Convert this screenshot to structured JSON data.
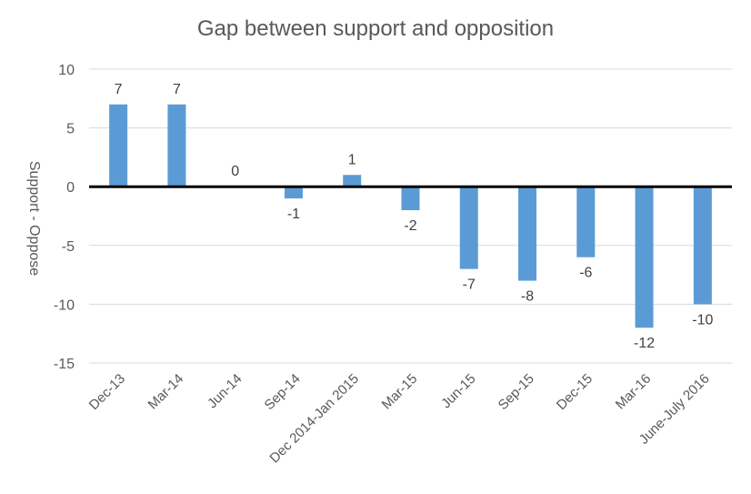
{
  "chart_data": {
    "type": "bar",
    "title": "Gap between support and opposition",
    "xlabel": "",
    "ylabel": "Support - Oppose",
    "categories": [
      "Dec-13",
      "Mar-14",
      "Jun-14",
      "Sep-14",
      "Dec 2014-Jan 2015",
      "Mar-15",
      "Jun-15",
      "Sep-15",
      "Dec-15",
      "Mar-16",
      "June-July 2016"
    ],
    "values": [
      7,
      7,
      0,
      -1,
      1,
      -2,
      -7,
      -8,
      -6,
      -12,
      -10
    ],
    "data_labels": [
      "7",
      "7",
      "0",
      "-1",
      "1",
      "-2",
      "-7",
      "-8",
      "-6",
      "-12",
      "-10"
    ],
    "ylim": [
      -15,
      10
    ],
    "yticks": [
      "10",
      "5",
      "0",
      "-5",
      "-10",
      "-15"
    ],
    "ytick_values": [
      10,
      5,
      0,
      -5,
      -10,
      -15
    ],
    "grid": true,
    "legend": "none",
    "colors": {
      "bar": "#5B9BD5",
      "grid": "#D9D9D9",
      "zero_line": "#000000"
    }
  }
}
